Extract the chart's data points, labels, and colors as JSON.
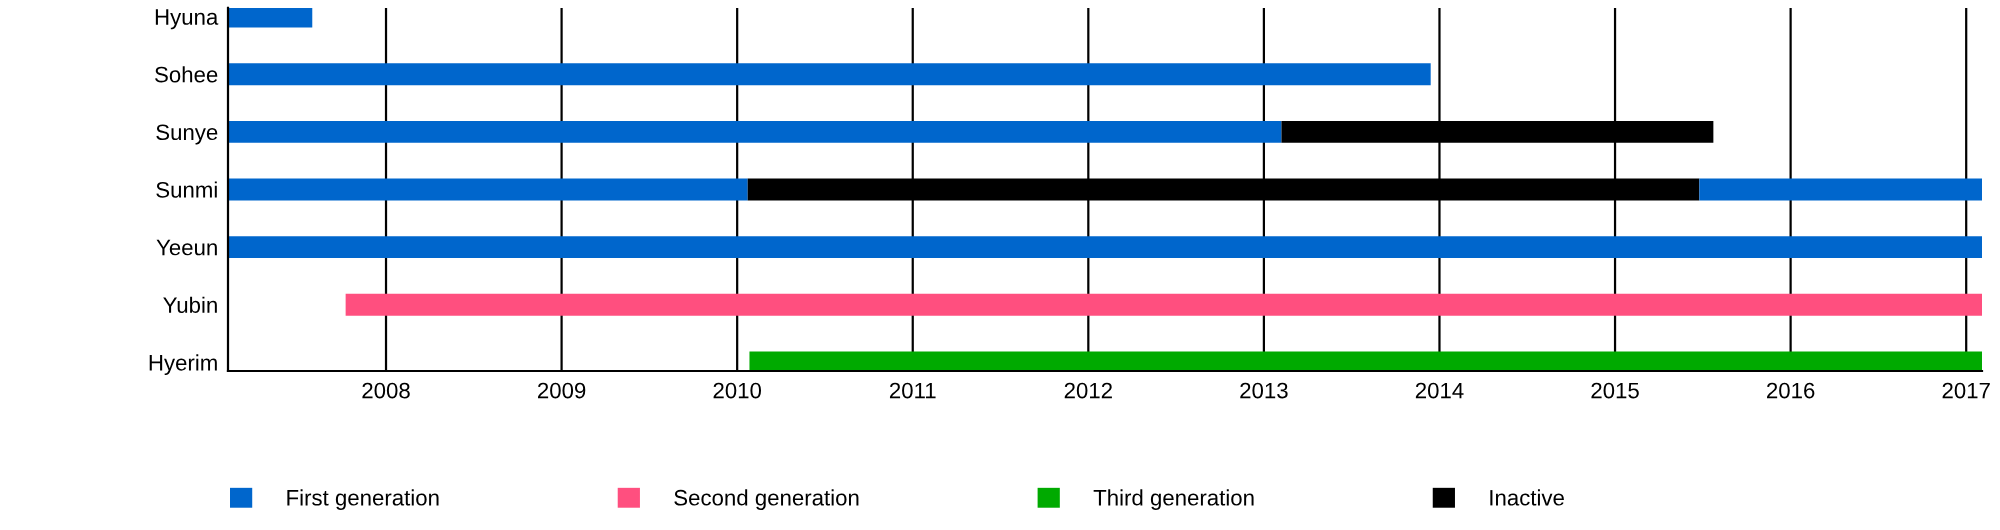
{
  "chart_data": {
    "type": "bar",
    "orientation": "horizontal",
    "categories": [
      "Hyuna",
      "Sohee",
      "Sunye",
      "Sunmi",
      "Yeeun",
      "Yubin",
      "Hyerim"
    ],
    "series": [
      {
        "name": "First generation",
        "color": "#0066cc",
        "base": [
          2007.1,
          2007.1,
          2007.1,
          2007.1,
          2007.1,
          null,
          null
        ],
        "values": [
          0.48,
          6.85,
          6.0,
          2.96,
          9.99,
          null,
          null
        ]
      },
      {
        "name": "Second generation",
        "color": "#ff4f7f",
        "base": [
          null,
          null,
          null,
          null,
          null,
          2007.77,
          null
        ],
        "values": [
          null,
          null,
          null,
          null,
          null,
          9.32,
          null
        ]
      },
      {
        "name": "Third generation",
        "color": "#00aa00",
        "base": [
          null,
          null,
          null,
          null,
          null,
          null,
          2010.07
        ],
        "values": [
          null,
          null,
          null,
          null,
          null,
          null,
          7.02
        ]
      },
      {
        "name": "Inactive",
        "color": "#000000",
        "base": [
          null,
          null,
          2013.1,
          2010.06,
          null,
          null,
          null
        ],
        "values": [
          null,
          null,
          2.46,
          5.42,
          null,
          null,
          null
        ]
      },
      {
        "color": "#0066cc",
        "base": [
          null,
          null,
          null,
          2015.48,
          null,
          null,
          null
        ],
        "values": [
          null,
          null,
          null,
          1.61,
          null,
          null,
          null
        ]
      }
    ],
    "xlim": [
      2007.1,
      2017.09
    ],
    "xticks": [
      2008,
      2009,
      2010,
      2011,
      2012,
      2013,
      2014,
      2015,
      2016,
      2017
    ],
    "grid": "x",
    "legend": "bottom"
  }
}
